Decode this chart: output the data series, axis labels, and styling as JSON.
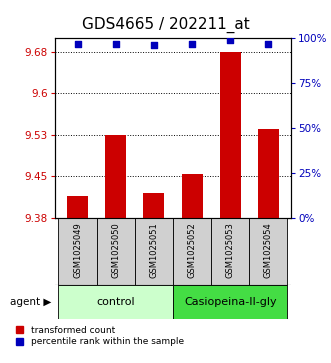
{
  "title": "GDS4665 / 202211_at",
  "samples": [
    "GSM1025049",
    "GSM1025050",
    "GSM1025051",
    "GSM1025052",
    "GSM1025053",
    "GSM1025054"
  ],
  "bar_values": [
    9.415,
    9.525,
    9.42,
    9.455,
    9.675,
    9.535
  ],
  "percentile_values": [
    97,
    97,
    96,
    97,
    99,
    97
  ],
  "ylim_left": [
    9.375,
    9.7
  ],
  "ylim_right": [
    0,
    100
  ],
  "yticks_left": [
    9.375,
    9.45,
    9.525,
    9.6,
    9.675
  ],
  "yticks_right": [
    0,
    25,
    50,
    75,
    100
  ],
  "bar_color": "#cc0000",
  "square_color": "#0000bb",
  "bar_bottom": 9.375,
  "group_label_control": "control",
  "group_label_treatment": "Casiopeina-II-gly",
  "legend_bar_label": "transformed count",
  "legend_sq_label": "percentile rank within the sample",
  "agent_label": "agent",
  "sample_area_color": "#d0d0d0",
  "control_color": "#ccffcc",
  "treatment_color": "#44dd44",
  "title_fontsize": 11,
  "tick_fontsize": 7.5,
  "label_fontsize": 7,
  "axis_color_left": "#cc0000",
  "axis_color_right": "#0000bb"
}
